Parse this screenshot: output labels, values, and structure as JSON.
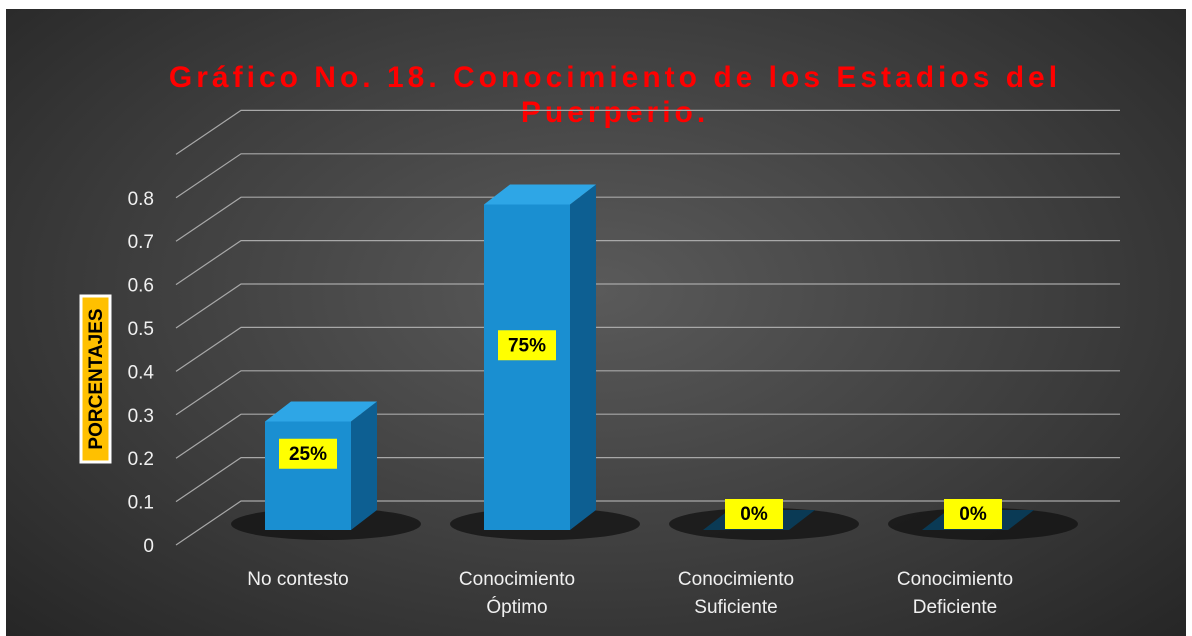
{
  "chart_data": {
    "type": "bar",
    "title_lines": [
      "Gráfico No. 18. Conocimiento de los Estadios del",
      "Puerperio."
    ],
    "ylabel": "PORCENTAJES",
    "xlabel": "",
    "categories": [
      [
        "No contesto"
      ],
      [
        "Conocimiento",
        "Óptimo"
      ],
      [
        "Conocimiento",
        "Suficiente"
      ],
      [
        "Conocimiento",
        "Deficiente"
      ]
    ],
    "values": [
      0.25,
      0.75,
      0,
      0
    ],
    "data_labels": [
      "25%",
      "75%",
      "0%",
      "0%"
    ],
    "ylim": [
      0,
      0.8
    ],
    "yticks": [
      "0",
      "0.1",
      "0.2",
      "0.3",
      "0.4",
      "0.5",
      "0.6",
      "0.7",
      "0.8"
    ],
    "grid": true,
    "three_d": true,
    "colors": {
      "bar_front": "#1a8fd1",
      "bar_side": "#0d5f92",
      "bar_top": "#2ea6e6",
      "title": "#ff0000",
      "label_box": "#ffff00",
      "ylabel_box": "#ffc000"
    }
  }
}
